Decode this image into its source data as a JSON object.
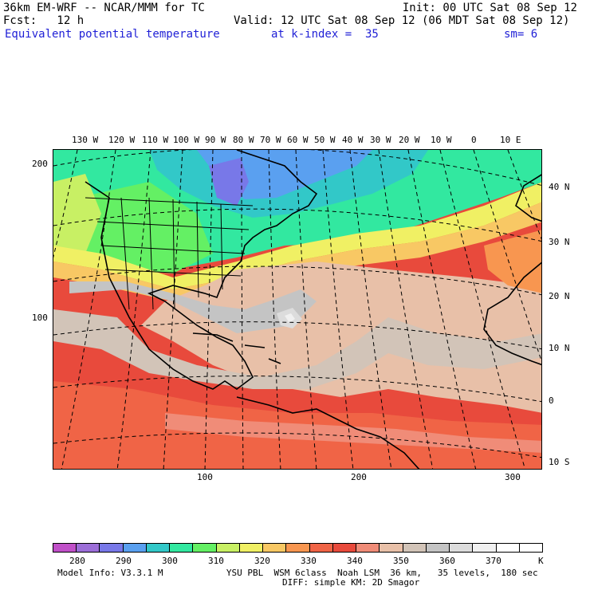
{
  "header": {
    "model": "36km EM-WRF -- NCAR/MMM for TC",
    "init": "Init: 00 UTC Sat 08 Sep 12",
    "forecast": "Fcst:   12 h",
    "valid": "Valid: 12 UTC Sat 08 Sep 12 (06 MDT Sat 08 Sep 12)",
    "field": "Equivalent potential temperature",
    "level": "at k-index =  35",
    "smoothing": "sm= 6"
  },
  "top_lon_labels": [
    "130 W",
    "120 W",
    "110 W",
    "100 W",
    "90 W",
    "80 W",
    "70 W",
    "60 W",
    "50 W",
    "40 W",
    "30 W",
    "20 W",
    "10 W",
    "0",
    "10 E"
  ],
  "right_lat_labels": [
    "40 N",
    "30 N",
    "20 N",
    "10 N",
    "0",
    "10 S"
  ],
  "left_grid_labels": [
    "200",
    "100"
  ],
  "bottom_grid_labels": [
    "100",
    "200",
    "300"
  ],
  "colorbar": {
    "labels": [
      "280",
      "290",
      "300",
      "310",
      "320",
      "330",
      "340",
      "350",
      "360",
      "370"
    ],
    "unit": "K",
    "colors": [
      "#c050c8",
      "#9c6ed8",
      "#7878e8",
      "#5aa0f0",
      "#32c8c8",
      "#32e8a0",
      "#64f064",
      "#c8f064",
      "#f0f064",
      "#f8c864",
      "#f89650",
      "#f06446",
      "#e84a3c",
      "#f08c78",
      "#e8c0a8",
      "#d2c4b8",
      "#c4c4c4",
      "#dcdcdc",
      "#f0f0f0",
      "#ffffff",
      "#ffffff"
    ]
  },
  "footer": {
    "line1": "Model Info: V3.3.1 M            YSU PBL  WSM 6class  Noah LSM  36 km,   35 levels,  180 sec",
    "line2": "DIFF: simple KM: 2D Smagor"
  }
}
